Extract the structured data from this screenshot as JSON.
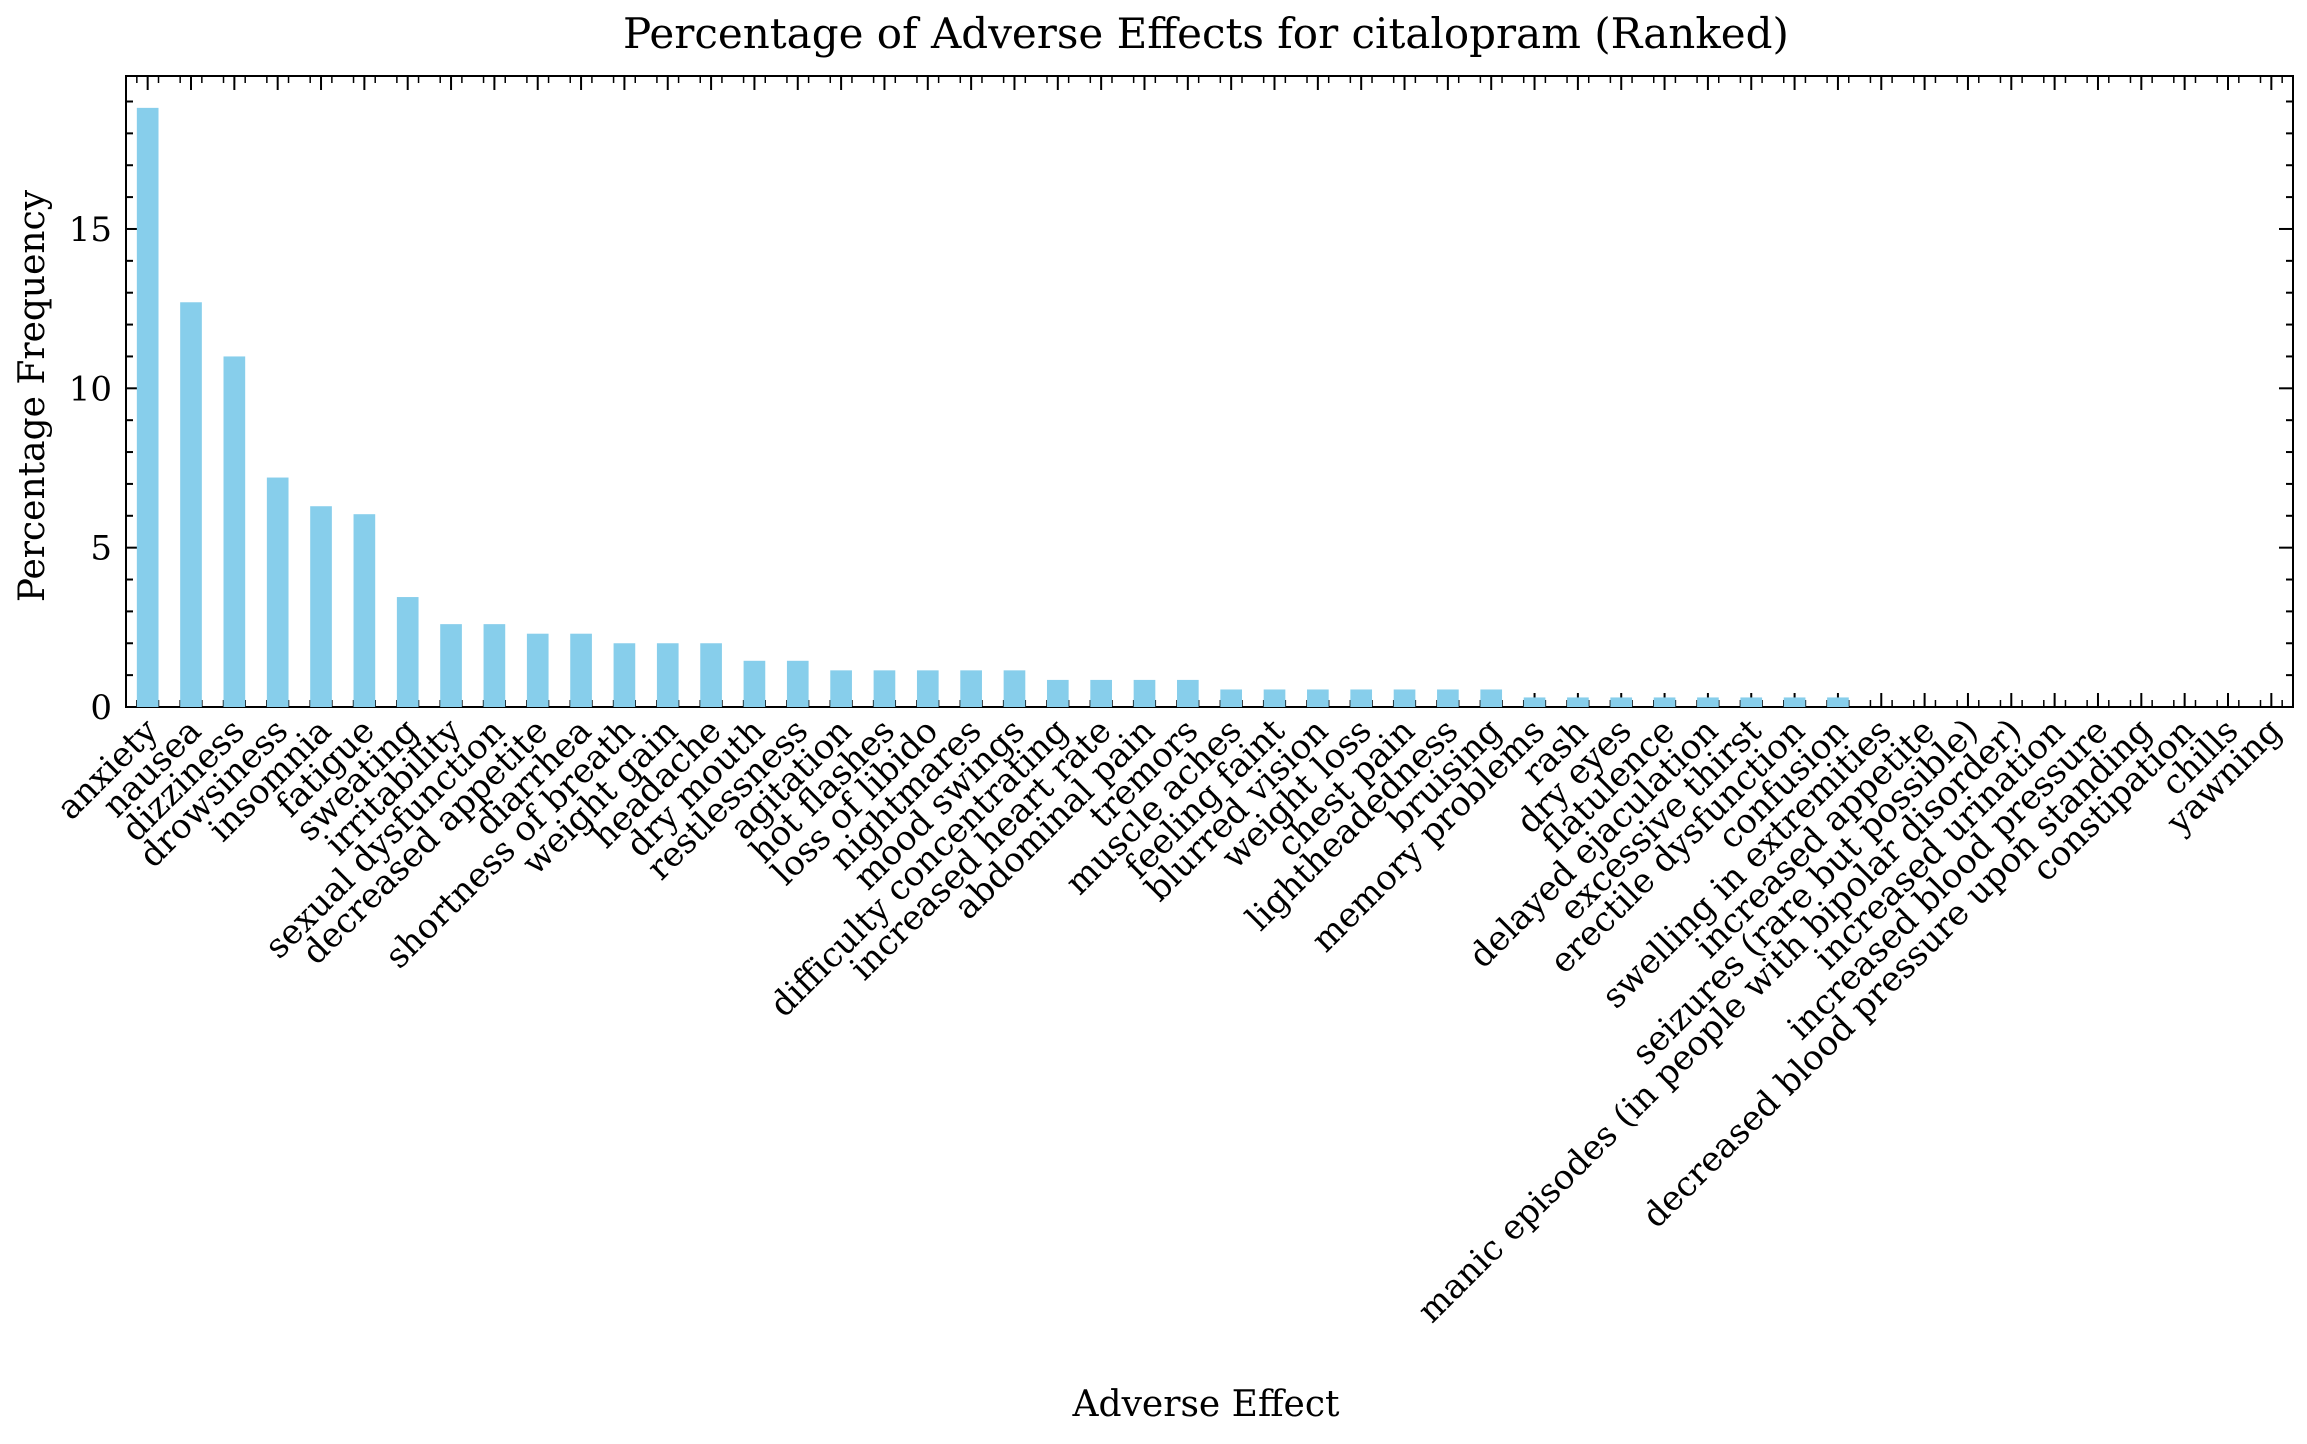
{
  "chart_data": {
    "type": "bar",
    "title": "Percentage of Adverse Effects for citalopram (Ranked)",
    "xlabel": "Adverse Effect",
    "ylabel": "Percentage Frequency",
    "ylim": [
      0,
      19.8
    ],
    "yticks": [
      0,
      5,
      10,
      15
    ],
    "grid": false,
    "bar_color": "#87ceeb",
    "categories": [
      "anxiety",
      "nausea",
      "dizziness",
      "drowsiness",
      "insomnia",
      "fatigue",
      "sweating",
      "irritability",
      "sexual dysfunction",
      "decreased appetite",
      "diarrhea",
      "shortness of breath",
      "weight gain",
      "headache",
      "dry mouth",
      "restlessness",
      "agitation",
      "hot flashes",
      "loss of libido",
      "nightmares",
      "mood swings",
      "difficulty concentrating",
      "increased heart rate",
      "abdominal pain",
      "tremors",
      "muscle aches",
      "feeling faint",
      "blurred vision",
      "weight loss",
      "chest pain",
      "lightheadedness",
      "bruising",
      "memory problems",
      "rash",
      "dry eyes",
      "flatulence",
      "delayed ejaculation",
      "excessive thirst",
      "erectile dysfunction",
      "confusion",
      "swelling in extremities",
      "increased appetite",
      "seizures (rare but possible)",
      "manic episodes (in people with bipolar disorder)",
      "increased urination",
      "increased blood pressure",
      "decreased blood pressure upon standing",
      "constipation",
      "chills",
      "yawning"
    ],
    "values": [
      18.8,
      12.7,
      11.0,
      7.2,
      6.3,
      6.05,
      3.45,
      2.6,
      2.6,
      2.3,
      2.3,
      2.0,
      2.0,
      2.0,
      1.45,
      1.45,
      1.15,
      1.15,
      1.15,
      1.15,
      1.15,
      0.85,
      0.85,
      0.85,
      0.85,
      0.55,
      0.55,
      0.55,
      0.55,
      0.55,
      0.55,
      0.55,
      0.3,
      0.3,
      0.3,
      0.3,
      0.3,
      0.3,
      0.3,
      0.3,
      0.0,
      0.0,
      0.0,
      0.0,
      0.0,
      0.0,
      0.0,
      0.0,
      0.0,
      0.0
    ]
  }
}
